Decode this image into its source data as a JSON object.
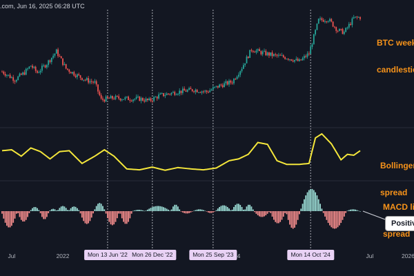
{
  "header": {
    "source_text": ".com, Jun 16, 2025 06:28 UTC"
  },
  "labels": {
    "candles": [
      "BTC weekl",
      "candlestic"
    ],
    "bollinger": [
      "Bollinger",
      "spread"
    ],
    "macd": [
      "MACD lin",
      "spread"
    ],
    "callout": "Positive"
  },
  "colors": {
    "background": "#131722",
    "candle_up": "#26a69a",
    "candle_down": "#ef5350",
    "bollinger_line": "#f5e73b",
    "hist_pos": "#9adbd4",
    "hist_neg": "#f28b8b",
    "label_orange": "#f7931a",
    "tag_bg": "#e9d2f5"
  },
  "x_axis": {
    "ticks": [
      "Jul",
      "2022",
      "2024",
      "Jul",
      "2026"
    ],
    "date_tags": [
      "Mon 13 Jun '22",
      "Mon 26 Dec '22",
      "Mon 25 Sep '23",
      "Mon 14 Oct '24"
    ]
  },
  "chart_data": [
    {
      "type": "line",
      "title": "BTC weekly candlesticks",
      "x_unit": "week index",
      "price_anchor_points": [
        {
          "w": 0,
          "p": 0.44
        },
        {
          "w": 8,
          "p": 0.36
        },
        {
          "w": 14,
          "p": 0.43
        },
        {
          "w": 18,
          "p": 0.5
        },
        {
          "w": 22,
          "p": 0.43
        },
        {
          "w": 28,
          "p": 0.52
        },
        {
          "w": 34,
          "p": 0.64
        },
        {
          "w": 40,
          "p": 0.47
        },
        {
          "w": 46,
          "p": 0.41
        },
        {
          "w": 52,
          "p": 0.36
        },
        {
          "w": 58,
          "p": 0.33
        },
        {
          "w": 62,
          "p": 0.16
        },
        {
          "w": 70,
          "p": 0.18
        },
        {
          "w": 80,
          "p": 0.17
        },
        {
          "w": 86,
          "p": 0.17
        },
        {
          "w": 92,
          "p": 0.15
        },
        {
          "w": 98,
          "p": 0.2
        },
        {
          "w": 110,
          "p": 0.24
        },
        {
          "w": 120,
          "p": 0.26
        },
        {
          "w": 128,
          "p": 0.24
        },
        {
          "w": 136,
          "p": 0.3
        },
        {
          "w": 144,
          "p": 0.34
        },
        {
          "w": 150,
          "p": 0.48
        },
        {
          "w": 156,
          "p": 0.66
        },
        {
          "w": 162,
          "p": 0.63
        },
        {
          "w": 170,
          "p": 0.6
        },
        {
          "w": 178,
          "p": 0.58
        },
        {
          "w": 186,
          "p": 0.54
        },
        {
          "w": 192,
          "p": 0.62
        },
        {
          "w": 198,
          "p": 0.95
        },
        {
          "w": 204,
          "p": 0.96
        },
        {
          "w": 210,
          "p": 0.85
        },
        {
          "w": 214,
          "p": 0.83
        },
        {
          "w": 220,
          "p": 0.97
        },
        {
          "w": 224,
          "p": 0.98
        }
      ],
      "y_range_normalized": [
        0,
        1
      ]
    },
    {
      "type": "line",
      "title": "Bollinger spread",
      "series": [
        {
          "points": [
            {
              "w": 0,
              "v": 0.6
            },
            {
              "w": 6,
              "v": 0.62
            },
            {
              "w": 12,
              "v": 0.48
            },
            {
              "w": 18,
              "v": 0.66
            },
            {
              "w": 24,
              "v": 0.58
            },
            {
              "w": 30,
              "v": 0.42
            },
            {
              "w": 36,
              "v": 0.58
            },
            {
              "w": 42,
              "v": 0.6
            },
            {
              "w": 50,
              "v": 0.32
            },
            {
              "w": 58,
              "v": 0.48
            },
            {
              "w": 64,
              "v": 0.62
            },
            {
              "w": 70,
              "v": 0.48
            },
            {
              "w": 78,
              "v": 0.2
            },
            {
              "w": 86,
              "v": 0.18
            },
            {
              "w": 94,
              "v": 0.24
            },
            {
              "w": 102,
              "v": 0.17
            },
            {
              "w": 110,
              "v": 0.23
            },
            {
              "w": 118,
              "v": 0.2
            },
            {
              "w": 126,
              "v": 0.18
            },
            {
              "w": 134,
              "v": 0.22
            },
            {
              "w": 142,
              "v": 0.38
            },
            {
              "w": 148,
              "v": 0.42
            },
            {
              "w": 154,
              "v": 0.52
            },
            {
              "w": 160,
              "v": 0.78
            },
            {
              "w": 166,
              "v": 0.74
            },
            {
              "w": 172,
              "v": 0.38
            },
            {
              "w": 178,
              "v": 0.3
            },
            {
              "w": 186,
              "v": 0.3
            },
            {
              "w": 192,
              "v": 0.32
            },
            {
              "w": 196,
              "v": 0.88
            },
            {
              "w": 200,
              "v": 0.97
            },
            {
              "w": 206,
              "v": 0.75
            },
            {
              "w": 212,
              "v": 0.4
            },
            {
              "w": 216,
              "v": 0.52
            },
            {
              "w": 220,
              "v": 0.5
            },
            {
              "w": 224,
              "v": 0.6
            }
          ]
        }
      ],
      "y_range_normalized": [
        0,
        1
      ]
    },
    {
      "type": "bar",
      "title": "MACD line spread",
      "y_range_normalized": [
        -1,
        1
      ],
      "segments": [
        {
          "from": 0,
          "to": 10,
          "peak": -0.7
        },
        {
          "from": 10,
          "to": 18,
          "peak": -0.45
        },
        {
          "from": 18,
          "to": 24,
          "peak": 0.18
        },
        {
          "from": 24,
          "to": 30,
          "peak": -0.35
        },
        {
          "from": 30,
          "to": 35,
          "peak": 0.1
        },
        {
          "from": 35,
          "to": 42,
          "peak": 0.22
        },
        {
          "from": 42,
          "to": 49,
          "peak": 0.2
        },
        {
          "from": 49,
          "to": 58,
          "peak": -0.55
        },
        {
          "from": 58,
          "to": 65,
          "peak": 0.35
        },
        {
          "from": 65,
          "to": 74,
          "peak": -0.6
        },
        {
          "from": 74,
          "to": 82,
          "peak": -0.55
        },
        {
          "from": 82,
          "to": 90,
          "peak": 0.06
        },
        {
          "from": 90,
          "to": 106,
          "peak": 0.22
        },
        {
          "from": 106,
          "to": 112,
          "peak": 0.28
        },
        {
          "from": 112,
          "to": 120,
          "peak": -0.1
        },
        {
          "from": 120,
          "to": 128,
          "peak": 0.08
        },
        {
          "from": 128,
          "to": 134,
          "peak": -0.08
        },
        {
          "from": 134,
          "to": 144,
          "peak": 0.25
        },
        {
          "from": 144,
          "to": 152,
          "peak": 0.32
        },
        {
          "from": 152,
          "to": 158,
          "peak": 0.28
        },
        {
          "from": 158,
          "to": 168,
          "peak": -0.25
        },
        {
          "from": 168,
          "to": 178,
          "peak": -0.52
        },
        {
          "from": 178,
          "to": 187,
          "peak": -0.75
        },
        {
          "from": 187,
          "to": 201,
          "peak": 0.95
        },
        {
          "from": 201,
          "to": 216,
          "peak": -0.75
        },
        {
          "from": 216,
          "to": 224,
          "peak": 0.08
        }
      ]
    }
  ],
  "date_markers_week": [
    66,
    94,
    132,
    193
  ],
  "x_tick_weeks": [
    6,
    38,
    145,
    230,
    254
  ],
  "total_weeks": 225
}
